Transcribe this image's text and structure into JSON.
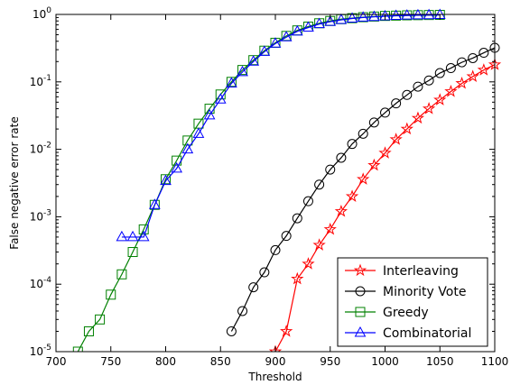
{
  "chart_data": {
    "type": "line",
    "title": "",
    "xlabel": "Threshold",
    "ylabel": "False negative error rate",
    "xlim": [
      700,
      1100
    ],
    "ylim": [
      1e-05,
      1
    ],
    "yscale": "log",
    "grid": false,
    "legend_position": "bottom-right",
    "x_ticks": [
      700,
      750,
      800,
      850,
      900,
      950,
      1000,
      1050,
      1100
    ],
    "y_ticks": [
      {
        "value": 1e-05,
        "base": "10",
        "exp": "-5"
      },
      {
        "value": 0.0001,
        "base": "10",
        "exp": "-4"
      },
      {
        "value": 0.001,
        "base": "10",
        "exp": "-3"
      },
      {
        "value": 0.01,
        "base": "10",
        "exp": "-2"
      },
      {
        "value": 0.1,
        "base": "10",
        "exp": "-1"
      },
      {
        "value": 1,
        "base": "10",
        "exp": "0"
      }
    ],
    "series": [
      {
        "name": "Interleaving",
        "color": "#ff0000",
        "marker": "star",
        "x": [
          900,
          910,
          920,
          930,
          940,
          950,
          960,
          970,
          980,
          990,
          1000,
          1010,
          1020,
          1030,
          1040,
          1050,
          1060,
          1070,
          1080,
          1090,
          1100
        ],
        "y": [
          1e-05,
          2e-05,
          0.00012,
          0.0002,
          0.00038,
          0.00065,
          0.0012,
          0.002,
          0.0036,
          0.0058,
          0.0088,
          0.014,
          0.02,
          0.029,
          0.04,
          0.054,
          0.072,
          0.095,
          0.12,
          0.15,
          0.18
        ]
      },
      {
        "name": "Minority Vote",
        "color": "#000000",
        "marker": "circle",
        "x": [
          860,
          870,
          880,
          890,
          900,
          910,
          920,
          930,
          940,
          950,
          960,
          970,
          980,
          990,
          1000,
          1010,
          1020,
          1030,
          1040,
          1050,
          1060,
          1070,
          1080,
          1090,
          1100
        ],
        "y": [
          2e-05,
          4e-05,
          9e-05,
          0.00015,
          0.00032,
          0.00052,
          0.00095,
          0.0017,
          0.003,
          0.005,
          0.0075,
          0.012,
          0.017,
          0.025,
          0.035,
          0.048,
          0.064,
          0.085,
          0.105,
          0.135,
          0.16,
          0.195,
          0.225,
          0.27,
          0.32
        ]
      },
      {
        "name": "Greedy",
        "color": "#008000",
        "marker": "square",
        "x": [
          720,
          730,
          740,
          750,
          760,
          770,
          780,
          790,
          800,
          810,
          820,
          830,
          840,
          850,
          860,
          870,
          880,
          890,
          900,
          910,
          920,
          930,
          940,
          950,
          960,
          970,
          980,
          990,
          1000,
          1010,
          1020,
          1030,
          1040,
          1050
        ],
        "y": [
          1e-05,
          2e-05,
          3e-05,
          7e-05,
          0.00014,
          0.0003,
          0.00065,
          0.0015,
          0.0036,
          0.0068,
          0.0135,
          0.024,
          0.04,
          0.065,
          0.1,
          0.15,
          0.21,
          0.29,
          0.38,
          0.48,
          0.58,
          0.66,
          0.74,
          0.8,
          0.85,
          0.88,
          0.91,
          0.93,
          0.95,
          0.96,
          0.97,
          0.975,
          0.98,
          0.985
        ]
      },
      {
        "name": "Combinatorial",
        "color": "#0000ff",
        "marker": "triangle",
        "x": [
          760,
          770,
          780,
          790,
          800,
          810,
          820,
          830,
          840,
          850,
          860,
          870,
          880,
          890,
          900,
          910,
          920,
          930,
          940,
          950,
          960,
          970,
          980,
          990,
          1000,
          1010,
          1020,
          1030,
          1040,
          1050
        ],
        "y": [
          0.0005,
          0.0005,
          0.0005,
          0.0015,
          0.0034,
          0.0052,
          0.01,
          0.017,
          0.032,
          0.055,
          0.095,
          0.14,
          0.2,
          0.28,
          0.37,
          0.46,
          0.56,
          0.64,
          0.72,
          0.78,
          0.83,
          0.87,
          0.9,
          0.92,
          0.94,
          0.955,
          0.965,
          0.972,
          0.978,
          0.984
        ]
      }
    ]
  }
}
